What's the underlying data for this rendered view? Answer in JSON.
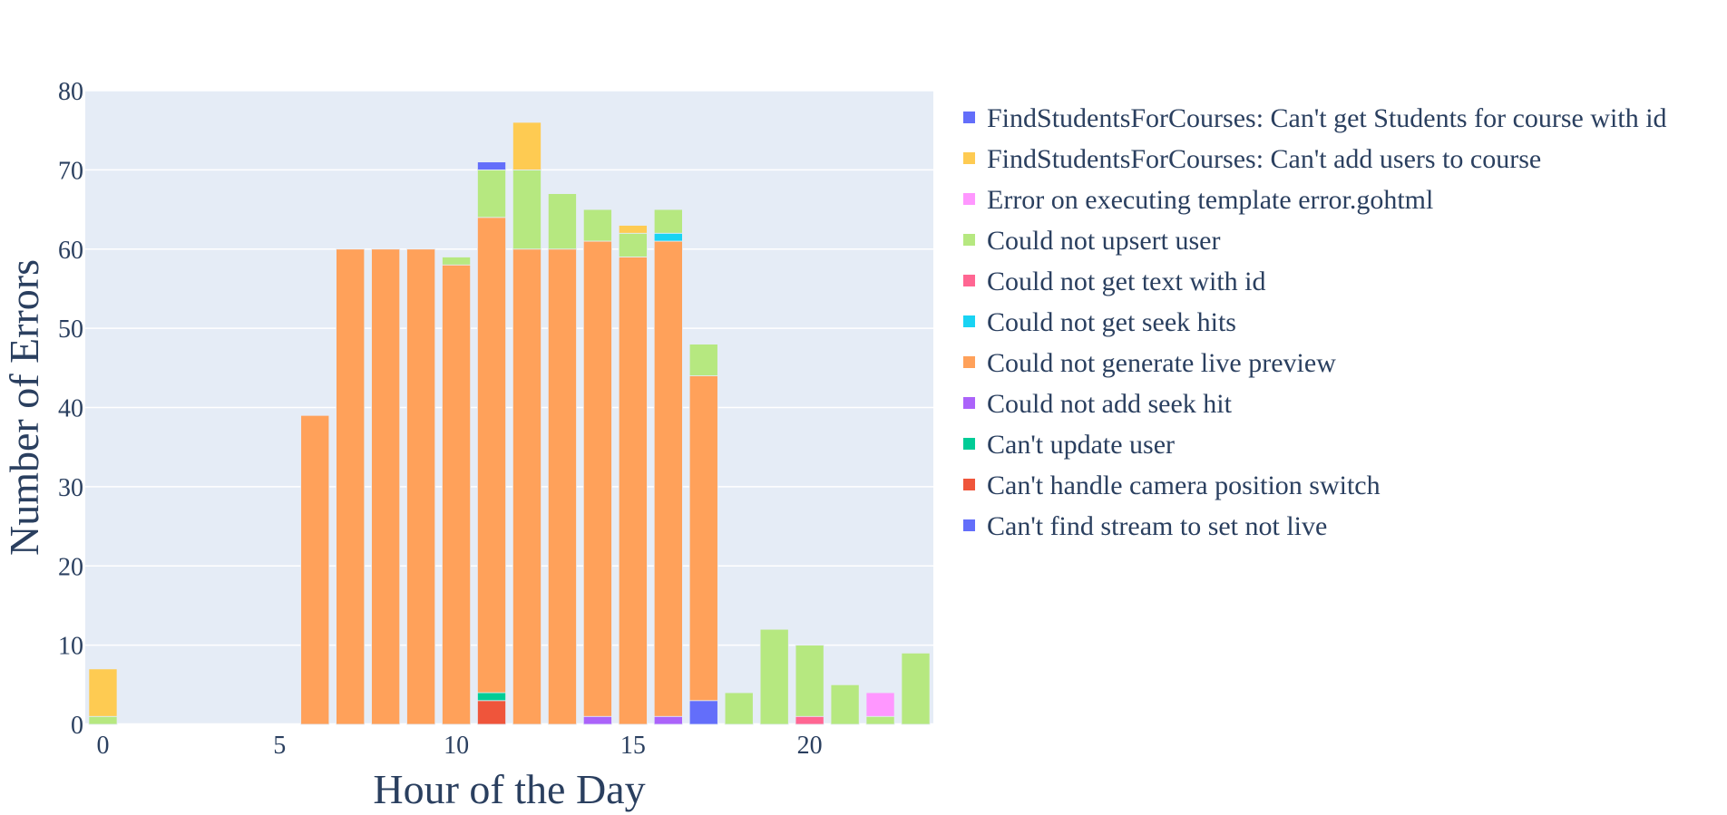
{
  "chart_data": {
    "type": "bar",
    "stacked": true,
    "title": "",
    "xlabel": "Hour of the Day",
    "ylabel": "Number of Errors",
    "xlim": [
      -0.5,
      23.5
    ],
    "ylim": [
      0,
      80
    ],
    "x_ticks": [
      0,
      5,
      10,
      15,
      20
    ],
    "y_ticks": [
      0,
      10,
      20,
      30,
      40,
      50,
      60,
      70,
      80
    ],
    "grid": true,
    "legend_position": "right",
    "background": "#E5ECF6",
    "series": [
      {
        "name": "Can't find stream to set not live",
        "color": "#636EFA",
        "points": [
          {
            "x": 17,
            "y": 3
          }
        ]
      },
      {
        "name": "Can't handle camera position switch",
        "color": "#EF553B",
        "points": [
          {
            "x": 11,
            "y": 3
          }
        ]
      },
      {
        "name": "Can't update user",
        "color": "#00CC96",
        "points": [
          {
            "x": 11,
            "y": 1
          }
        ]
      },
      {
        "name": "Could not add seek hit",
        "color": "#AB63FA",
        "points": [
          {
            "x": 14,
            "y": 1
          },
          {
            "x": 16,
            "y": 1
          }
        ]
      },
      {
        "name": "Could not generate live preview",
        "color": "#FFA15A",
        "points": [
          {
            "x": 6,
            "y": 39
          },
          {
            "x": 7,
            "y": 60
          },
          {
            "x": 8,
            "y": 60
          },
          {
            "x": 9,
            "y": 60
          },
          {
            "x": 10,
            "y": 58
          },
          {
            "x": 11,
            "y": 60
          },
          {
            "x": 12,
            "y": 60
          },
          {
            "x": 13,
            "y": 60
          },
          {
            "x": 14,
            "y": 60
          },
          {
            "x": 15,
            "y": 59
          },
          {
            "x": 16,
            "y": 60
          },
          {
            "x": 17,
            "y": 41
          }
        ]
      },
      {
        "name": "Could not get seek hits",
        "color": "#19D3F3",
        "points": [
          {
            "x": 16,
            "y": 1
          }
        ]
      },
      {
        "name": "Could not get text with id",
        "color": "#FF6692",
        "points": [
          {
            "x": 20,
            "y": 1
          }
        ]
      },
      {
        "name": "Could not upsert user",
        "color": "#B6E880",
        "points": [
          {
            "x": 0,
            "y": 1
          },
          {
            "x": 10,
            "y": 1
          },
          {
            "x": 11,
            "y": 6
          },
          {
            "x": 12,
            "y": 10
          },
          {
            "x": 13,
            "y": 7
          },
          {
            "x": 14,
            "y": 4
          },
          {
            "x": 15,
            "y": 3
          },
          {
            "x": 16,
            "y": 3
          },
          {
            "x": 17,
            "y": 4
          },
          {
            "x": 18,
            "y": 4
          },
          {
            "x": 19,
            "y": 12
          },
          {
            "x": 20,
            "y": 9
          },
          {
            "x": 21,
            "y": 5
          },
          {
            "x": 22,
            "y": 1
          },
          {
            "x": 23,
            "y": 9
          }
        ]
      },
      {
        "name": "Error on executing template error.gohtml",
        "color": "#FF97FF",
        "points": [
          {
            "x": 22,
            "y": 3
          }
        ]
      },
      {
        "name": "FindStudentsForCourses: Can't add users to course",
        "color": "#FECB52",
        "points": [
          {
            "x": 0,
            "y": 6
          },
          {
            "x": 12,
            "y": 6
          },
          {
            "x": 15,
            "y": 1
          }
        ]
      },
      {
        "name": "FindStudentsForCourses: Can't get Students for course with id",
        "color": "#636EFA",
        "points": [
          {
            "x": 11,
            "y": 1
          }
        ]
      }
    ]
  }
}
